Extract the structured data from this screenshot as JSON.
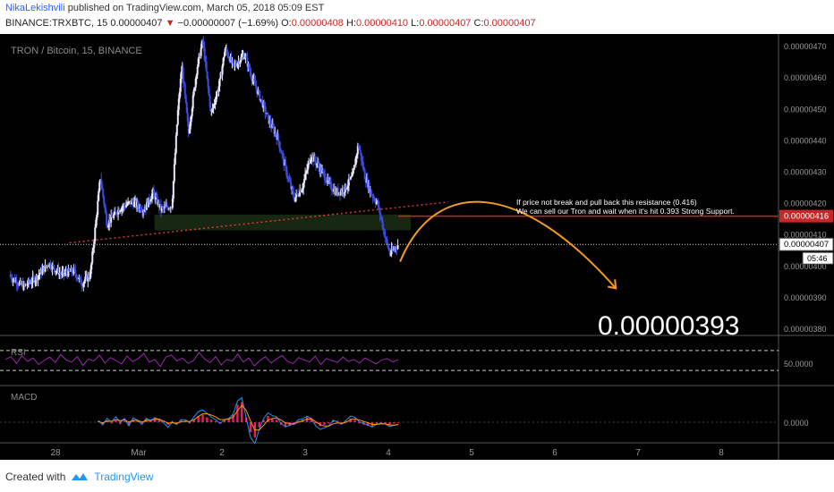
{
  "header": {
    "author": "NikaLekishvili",
    "published_text": "published on TradingView.com, March 05, 2018 05:09 EST",
    "symbol": "BINANCE:TRXBTC, 15",
    "last": "0.00000407",
    "change": "−0.00000007 (−1.69%)",
    "o_label": "O:",
    "o": "0.00000408",
    "h_label": "H:",
    "h": "0.00000410",
    "l_label": "L:",
    "l": "0.00000407",
    "c_label": "C:",
    "c": "0.00000407"
  },
  "chart_data": {
    "type": "line",
    "title": "TRON / Bitcoin, 15, BINANCE",
    "y_ticks": [
      "0.00000470",
      "0.00000460",
      "0.00000450",
      "0.00000440",
      "0.00000430",
      "0.00000420",
      "0.00000410",
      "0.00000400",
      "0.00000390",
      "0.00000380"
    ],
    "ylim": [
      3.78e-06,
      4.74e-06
    ],
    "x_ticks": [
      "28",
      "Mar",
      "2",
      "3",
      "4",
      "5",
      "6",
      "7",
      "8"
    ],
    "price_path": [
      [
        0.0,
        3.975e-06
      ],
      [
        0.2,
        3.935e-06
      ],
      [
        0.35,
        3.965e-06
      ],
      [
        0.5,
        4.01e-06
      ],
      [
        0.65,
        3.975e-06
      ],
      [
        0.8,
        3.985e-06
      ],
      [
        0.9,
        3.945e-06
      ],
      [
        1.0,
        3.975e-06
      ],
      [
        1.05,
        4.1e-06
      ],
      [
        1.12,
        4.285e-06
      ],
      [
        1.2,
        4.135e-06
      ],
      [
        1.35,
        4.185e-06
      ],
      [
        1.5,
        4.205e-06
      ],
      [
        1.65,
        4.18e-06
      ],
      [
        1.75,
        4.235e-06
      ],
      [
        1.85,
        4.18e-06
      ],
      [
        1.98,
        4.195e-06
      ],
      [
        2.05,
        4.49e-06
      ],
      [
        2.1,
        4.64e-06
      ],
      [
        2.18,
        4.425e-06
      ],
      [
        2.28,
        4.63e-06
      ],
      [
        2.35,
        4.72e-06
      ],
      [
        2.45,
        4.485e-06
      ],
      [
        2.55,
        4.58e-06
      ],
      [
        2.62,
        4.695e-06
      ],
      [
        2.72,
        4.635e-06
      ],
      [
        2.85,
        4.675e-06
      ],
      [
        2.95,
        4.595e-06
      ],
      [
        3.05,
        4.53e-06
      ],
      [
        3.15,
        4.46e-06
      ],
      [
        3.25,
        4.41e-06
      ],
      [
        3.35,
        4.305e-06
      ],
      [
        3.45,
        4.215e-06
      ],
      [
        3.55,
        4.255e-06
      ],
      [
        3.65,
        4.355e-06
      ],
      [
        3.75,
        4.315e-06
      ],
      [
        3.85,
        4.27e-06
      ],
      [
        3.95,
        4.235e-06
      ],
      [
        4.05,
        4.245e-06
      ],
      [
        4.15,
        4.285e-06
      ],
      [
        4.22,
        4.39e-06
      ],
      [
        4.3,
        4.285e-06
      ],
      [
        4.38,
        4.23e-06
      ],
      [
        4.45,
        4.2e-06
      ],
      [
        4.5,
        4.145e-06
      ],
      [
        4.55,
        4.085e-06
      ],
      [
        4.6,
        4.04e-06
      ],
      [
        4.65,
        4.055e-06
      ],
      [
        4.7,
        4.07e-06
      ]
    ],
    "resistance": "0.00000416",
    "current_price": "0.00000407",
    "countdown": "05:46",
    "target": "0.00000393",
    "annotation_line1": "If price not break and pull back this resistance (0.416)",
    "annotation_line2": "We can sell our Tron and wait when it's hit 0.393 Strong Support.",
    "rsi": {
      "label": "RSI",
      "value": "50.0000",
      "levels": [
        70,
        30
      ],
      "values": [
        52,
        58,
        44,
        60,
        48,
        55,
        42,
        50,
        57,
        46,
        62,
        51,
        47,
        58,
        40,
        53,
        49,
        61,
        45,
        56,
        50,
        43,
        59,
        48,
        54,
        64,
        47,
        52,
        38,
        57,
        61,
        49,
        55,
        44,
        50,
        66,
        53,
        46,
        58,
        41,
        52,
        49,
        63,
        47,
        55,
        39,
        50,
        58,
        45,
        53,
        60,
        48,
        44,
        56,
        51,
        47,
        59,
        42,
        54,
        50,
        46,
        57,
        48,
        52,
        45,
        55,
        49,
        43,
        51,
        54,
        47,
        52
      ]
    },
    "macd": {
      "label": "MACD",
      "value": "0.0000",
      "hist": [
        0.1,
        -0.2,
        0.15,
        -0.1,
        0.2,
        -0.15,
        0.1,
        -0.3,
        0.2,
        0.1,
        -0.1,
        0.3,
        0.2,
        0.4,
        0.3,
        0.1,
        -0.2,
        0.1,
        -0.1,
        0.15,
        0.1,
        -0.1,
        0.2,
        0.5,
        0.6,
        0.4,
        0.2,
        0.1,
        -0.1,
        0.2,
        0.3,
        0.6,
        1.4,
        1.6,
        0.4,
        -0.8,
        -1.2,
        -0.4,
        0.2,
        0.5,
        0.3,
        0.2,
        -0.2,
        -0.4,
        -0.3,
        -0.2,
        0.1,
        0.2,
        0.4,
        0.3,
        -0.1,
        -0.3,
        -0.2,
        -0.1,
        0.2,
        0.1,
        -0.1,
        0.1,
        0.3,
        0.2,
        -0.1,
        -0.2,
        -0.3,
        -0.4,
        -0.2,
        -0.1,
        -0.1,
        -0.2,
        -0.1,
        0.0
      ]
    }
  },
  "footer": {
    "created_with": "Created with",
    "brand": "TradingView"
  }
}
